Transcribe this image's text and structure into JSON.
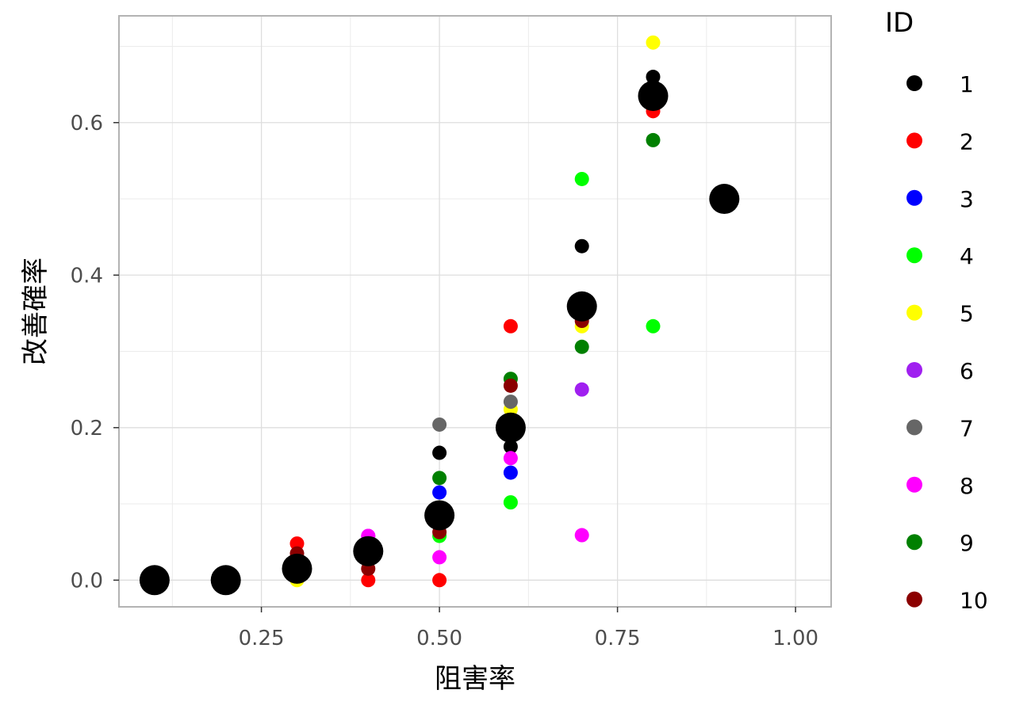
{
  "chart_data": {
    "type": "scatter",
    "xlabel": "阻害率",
    "ylabel": "改善確率",
    "xlim": [
      0.05,
      1.05
    ],
    "ylim": [
      -0.035,
      0.74
    ],
    "x_ticks": [
      "0.25",
      "0.50",
      "0.75",
      "1.00"
    ],
    "y_ticks": [
      "0.0",
      "0.2",
      "0.4",
      "0.6"
    ],
    "grid": true,
    "legend": {
      "title": "ID",
      "position": "right"
    },
    "series": [
      {
        "name": "1",
        "color": "#000000",
        "points": [
          [
            0.5,
            0.167
          ],
          [
            0.6,
            0.175
          ],
          [
            0.7,
            0.438
          ],
          [
            0.8,
            0.66
          ],
          [
            0.8,
            0.648
          ]
        ]
      },
      {
        "name": "2",
        "color": "#ff0000",
        "points": [
          [
            0.3,
            0.048
          ],
          [
            0.4,
            0.0
          ],
          [
            0.5,
            0.0
          ],
          [
            0.6,
            0.333
          ],
          [
            0.8,
            0.615
          ]
        ]
      },
      {
        "name": "3",
        "color": "#0000ff",
        "points": [
          [
            0.5,
            0.115
          ],
          [
            0.6,
            0.141
          ]
        ]
      },
      {
        "name": "4",
        "color": "#00ff00",
        "points": [
          [
            0.5,
            0.058
          ],
          [
            0.6,
            0.102
          ],
          [
            0.7,
            0.526
          ],
          [
            0.8,
            0.333
          ]
        ]
      },
      {
        "name": "5",
        "color": "#ffff00",
        "points": [
          [
            0.3,
            0.0
          ],
          [
            0.6,
            0.224
          ],
          [
            0.7,
            0.333
          ],
          [
            0.8,
            0.705
          ]
        ]
      },
      {
        "name": "6",
        "color": "#a020f0",
        "points": [
          [
            0.4,
            0.058
          ],
          [
            0.7,
            0.25
          ]
        ]
      },
      {
        "name": "7",
        "color": "#666666",
        "points": [
          [
            0.5,
            0.204
          ],
          [
            0.6,
            0.234
          ]
        ]
      },
      {
        "name": "8",
        "color": "#ff00ff",
        "points": [
          [
            0.4,
            0.058
          ],
          [
            0.5,
            0.03
          ],
          [
            0.6,
            0.16
          ],
          [
            0.7,
            0.059
          ]
        ]
      },
      {
        "name": "9",
        "color": "#008000",
        "points": [
          [
            0.5,
            0.134
          ],
          [
            0.6,
            0.264
          ],
          [
            0.7,
            0.306
          ],
          [
            0.8,
            0.577
          ]
        ]
      },
      {
        "name": "10",
        "color": "#8b0000",
        "points": [
          [
            0.3,
            0.035
          ],
          [
            0.4,
            0.015
          ],
          [
            0.5,
            0.063
          ],
          [
            0.6,
            0.255
          ],
          [
            0.7,
            0.34
          ]
        ]
      }
    ],
    "mean_points": {
      "color": "#000000",
      "points": [
        [
          0.1,
          0.0
        ],
        [
          0.2,
          0.0
        ],
        [
          0.3,
          0.015
        ],
        [
          0.4,
          0.038
        ],
        [
          0.5,
          0.085
        ],
        [
          0.6,
          0.2
        ],
        [
          0.7,
          0.359
        ],
        [
          0.8,
          0.635
        ],
        [
          0.9,
          0.5
        ]
      ]
    }
  }
}
